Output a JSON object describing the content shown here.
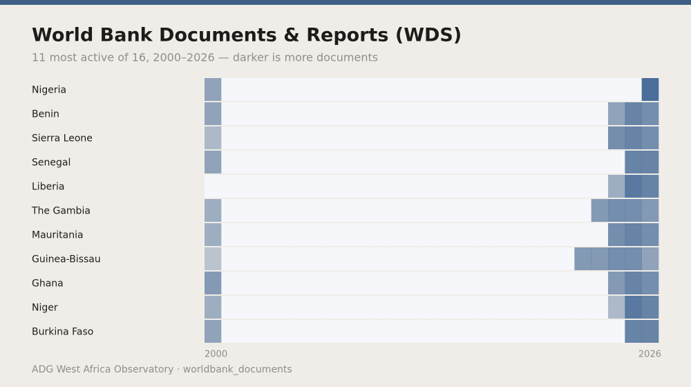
{
  "chart_data": {
    "type": "heatmap",
    "title": "World Bank Documents & Reports (WDS)",
    "subtitle": "11 most active of 16, 2000–2026 — darker is more documents",
    "footer": "ADG West Africa Observatory · worldbank_documents",
    "color": "#4a6d99",
    "x": [
      2000,
      2001,
      2002,
      2003,
      2004,
      2005,
      2006,
      2007,
      2008,
      2009,
      2010,
      2011,
      2012,
      2013,
      2014,
      2015,
      2016,
      2017,
      2018,
      2019,
      2020,
      2021,
      2022,
      2023,
      2024,
      2025,
      2026
    ],
    "xlim": [
      2000,
      2026
    ],
    "xticks": [
      2000,
      2026
    ],
    "series": [
      {
        "name": "Nigeria",
        "values": [
          5,
          0,
          0,
          0,
          0,
          0,
          0,
          0,
          0,
          0,
          0,
          0,
          0,
          0,
          0,
          0,
          0,
          0,
          0,
          0,
          0,
          0,
          0,
          0,
          0,
          0,
          10
        ]
      },
      {
        "name": "Benin",
        "values": [
          5,
          0,
          0,
          0,
          0,
          0,
          0,
          0,
          0,
          0,
          0,
          0,
          0,
          0,
          0,
          0,
          0,
          0,
          0,
          0,
          0,
          0,
          0,
          0,
          5,
          8,
          7
        ]
      },
      {
        "name": "Sierra Leone",
        "values": [
          3,
          0,
          0,
          0,
          0,
          0,
          0,
          0,
          0,
          0,
          0,
          0,
          0,
          0,
          0,
          0,
          0,
          0,
          0,
          0,
          0,
          0,
          0,
          0,
          7,
          8,
          7
        ]
      },
      {
        "name": "Senegal",
        "values": [
          5,
          0,
          0,
          0,
          0,
          0,
          0,
          0,
          0,
          0,
          0,
          0,
          0,
          0,
          0,
          0,
          0,
          0,
          0,
          0,
          0,
          0,
          0,
          0,
          0,
          8,
          8
        ]
      },
      {
        "name": "Liberia",
        "values": [
          0,
          0,
          0,
          0,
          0,
          0,
          0,
          0,
          0,
          0,
          0,
          0,
          0,
          0,
          0,
          0,
          0,
          0,
          0,
          0,
          0,
          0,
          0,
          0,
          4,
          9,
          8
        ]
      },
      {
        "name": "The Gambia",
        "values": [
          4,
          0,
          0,
          0,
          0,
          0,
          0,
          0,
          0,
          0,
          0,
          0,
          0,
          0,
          0,
          0,
          0,
          0,
          0,
          0,
          0,
          0,
          0,
          6,
          7,
          7,
          6
        ]
      },
      {
        "name": "Mauritania",
        "values": [
          4,
          0,
          0,
          0,
          0,
          0,
          0,
          0,
          0,
          0,
          0,
          0,
          0,
          0,
          0,
          0,
          0,
          0,
          0,
          0,
          0,
          0,
          0,
          0,
          7,
          8,
          7
        ]
      },
      {
        "name": "Guinea-Bissau",
        "values": [
          2,
          0,
          0,
          0,
          0,
          0,
          0,
          0,
          0,
          0,
          0,
          0,
          0,
          0,
          0,
          0,
          0,
          0,
          0,
          0,
          0,
          0,
          6,
          6,
          7,
          7,
          5
        ]
      },
      {
        "name": "Ghana",
        "values": [
          6,
          0,
          0,
          0,
          0,
          0,
          0,
          0,
          0,
          0,
          0,
          0,
          0,
          0,
          0,
          0,
          0,
          0,
          0,
          0,
          0,
          0,
          0,
          0,
          6,
          8,
          7
        ]
      },
      {
        "name": "Niger",
        "values": [
          4,
          0,
          0,
          0,
          0,
          0,
          0,
          0,
          0,
          0,
          0,
          0,
          0,
          0,
          0,
          0,
          0,
          0,
          0,
          0,
          0,
          0,
          0,
          0,
          3,
          9,
          8
        ]
      },
      {
        "name": "Burkina Faso",
        "values": [
          5,
          0,
          0,
          0,
          0,
          0,
          0,
          0,
          0,
          0,
          0,
          0,
          0,
          0,
          0,
          0,
          0,
          0,
          0,
          0,
          0,
          0,
          0,
          0,
          0,
          8,
          8
        ]
      }
    ]
  }
}
